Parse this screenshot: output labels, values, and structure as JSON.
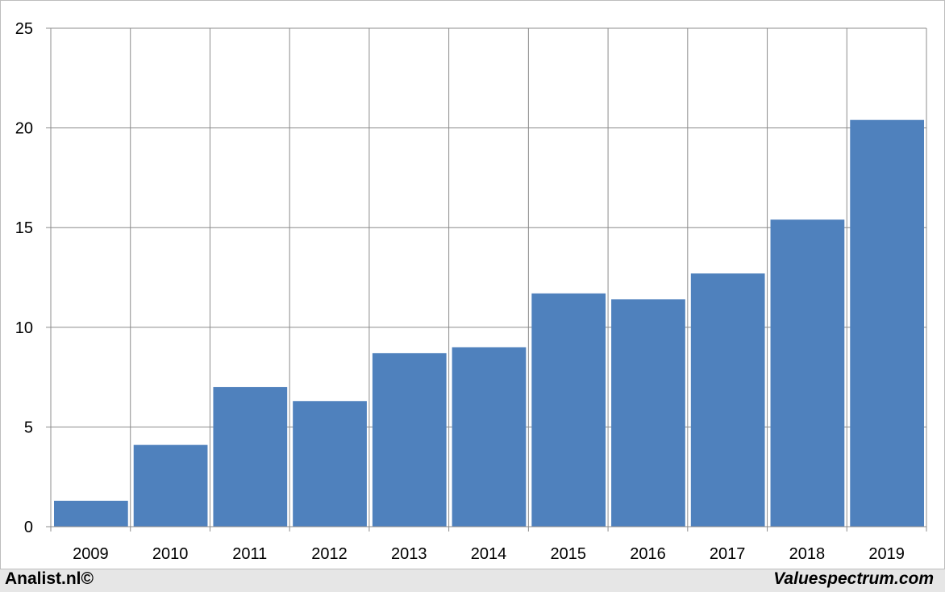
{
  "chart_data": {
    "type": "bar",
    "categories": [
      "2009",
      "2010",
      "2011",
      "2012",
      "2013",
      "2014",
      "2015",
      "2016",
      "2017",
      "2018",
      "2019"
    ],
    "values": [
      1.3,
      4.1,
      7.0,
      6.3,
      8.7,
      9.0,
      11.7,
      11.4,
      12.7,
      15.4,
      20.4
    ],
    "title": "",
    "xlabel": "",
    "ylabel": "",
    "ylim": [
      0,
      25
    ],
    "yticks": [
      "0",
      "5",
      "10",
      "15",
      "20",
      "25"
    ],
    "grid": true,
    "bar_color": "#4f81bd",
    "grid_color": "#8c8c8c"
  },
  "footer": {
    "left": "Analist.nl©",
    "right": "Valuespectrum.com"
  }
}
